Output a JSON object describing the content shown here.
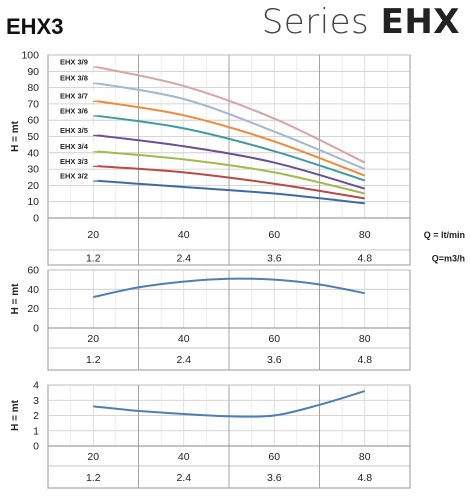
{
  "header": {
    "title": "EHX3",
    "series_prefix": "Series ",
    "series_name": "EHX"
  },
  "chart_data": [
    {
      "type": "line",
      "ylabel": "H = mt",
      "x": [
        20,
        40,
        60,
        80
      ],
      "xticks": [
        "20",
        "40",
        "60",
        "80"
      ],
      "xticks2": [
        "1.2",
        "2.4",
        "3.6",
        "4.8"
      ],
      "xunit": "Q = lt/min",
      "xunit2": "Q=m3/h",
      "xlim": [
        10,
        90
      ],
      "ylim": [
        0,
        100
      ],
      "yticks": [
        0,
        10,
        20,
        30,
        40,
        50,
        60,
        70,
        80,
        90,
        100
      ],
      "grid": true,
      "series": [
        {
          "name": "EHX 3/9",
          "color": "#d9a3a3",
          "values": [
            93,
            81,
            61,
            34
          ]
        },
        {
          "name": "EHX 3/8",
          "color": "#a3b6d2",
          "values": [
            83,
            73,
            53,
            30
          ]
        },
        {
          "name": "EHX 3/7",
          "color": "#f08a38",
          "values": [
            72,
            63,
            47,
            26
          ]
        },
        {
          "name": "EHX 3/6",
          "color": "#3f9aa3",
          "values": [
            63,
            55,
            41,
            23
          ]
        },
        {
          "name": "EHX 3/5",
          "color": "#6a4e96",
          "values": [
            51,
            44,
            34,
            18
          ]
        },
        {
          "name": "EHX 3/4",
          "color": "#a2b94c",
          "values": [
            41,
            36,
            28,
            15
          ]
        },
        {
          "name": "EHX 3/3",
          "color": "#b84a43",
          "values": [
            32,
            28,
            21,
            12
          ]
        },
        {
          "name": "EHX 3/2",
          "color": "#3c6aa8",
          "values": [
            23,
            19,
            15,
            9
          ]
        }
      ]
    },
    {
      "type": "line",
      "ylabel": "H = mt",
      "x": [
        20,
        30,
        40,
        50,
        60,
        70,
        80
      ],
      "xticks": [
        "20",
        "40",
        "60",
        "80"
      ],
      "xticks2": [
        "1.2",
        "2.4",
        "3.6",
        "4.8"
      ],
      "xlim": [
        10,
        90
      ],
      "ylim": [
        0,
        60
      ],
      "yticks": [
        0,
        20,
        40,
        60
      ],
      "grid": true,
      "series": [
        {
          "color": "#4d7fb5",
          "values": [
            32,
            42,
            48,
            51,
            50,
            45,
            36
          ]
        }
      ]
    },
    {
      "type": "line",
      "ylabel": "H = mt",
      "x": [
        20,
        30,
        40,
        50,
        60,
        70,
        80
      ],
      "xticks": [
        "20",
        "40",
        "60",
        "80"
      ],
      "xticks2": [
        "1.2",
        "2.4",
        "3.6",
        "4.8"
      ],
      "xlim": [
        10,
        90
      ],
      "ylim": [
        0,
        4
      ],
      "yticks": [
        0,
        1,
        2,
        3,
        4
      ],
      "grid": true,
      "series": [
        {
          "color": "#4d7fb5",
          "values": [
            2.6,
            2.3,
            2.1,
            1.95,
            2.0,
            2.7,
            3.6
          ]
        }
      ]
    }
  ]
}
